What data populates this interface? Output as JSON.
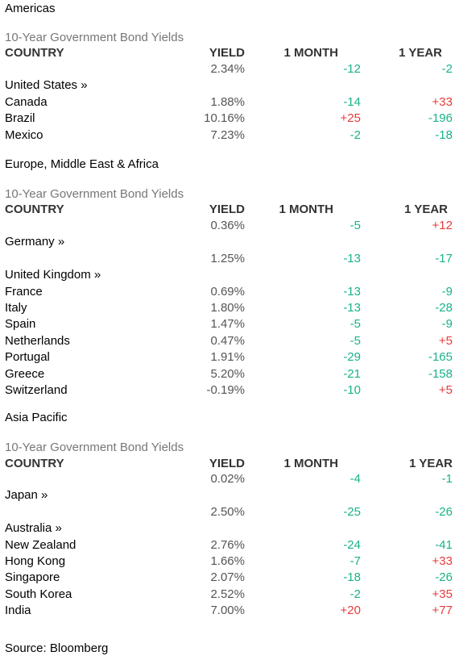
{
  "sections": [
    {
      "region": "Americas",
      "caption": "10-Year Government Bond Yields",
      "headers": {
        "country": "COUNTRY",
        "yield": "YIELD",
        "month": "1 MONTH",
        "year": "1 YEAR"
      },
      "rows": [
        {
          "country": "",
          "yield": "2.34%",
          "month": "-12",
          "year": "-2"
        },
        {
          "country": "United States »",
          "yield": "",
          "month": "",
          "year": ""
        },
        {
          "country": "Canada",
          "yield": "1.88%",
          "month": "-14",
          "year": "+33"
        },
        {
          "country": "Brazil",
          "yield": "10.16%",
          "month": "+25",
          "year": "-196"
        },
        {
          "country": "Mexico",
          "yield": "7.23%",
          "month": "-2",
          "year": "-18"
        }
      ]
    },
    {
      "region": "Europe, Middle East & Africa",
      "caption": "10-Year Government Bond Yields",
      "headers": {
        "country": "COUNTRY",
        "yield": "YIELD",
        "month": "1 MONTH",
        "year": "1 YEAR"
      },
      "rows": [
        {
          "country": "",
          "yield": "0.36%",
          "month": "-5",
          "year": "+12"
        },
        {
          "country": "Germany »",
          "yield": "",
          "month": "",
          "year": ""
        },
        {
          "country": "",
          "yield": "1.25%",
          "month": "-13",
          "year": "-17"
        },
        {
          "country": "United Kingdom »",
          "yield": "",
          "month": "",
          "year": ""
        },
        {
          "country": "France",
          "yield": "0.69%",
          "month": "-13",
          "year": "-9"
        },
        {
          "country": "Italy",
          "yield": "1.80%",
          "month": "-13",
          "year": "-28"
        },
        {
          "country": "Spain",
          "yield": "1.47%",
          "month": "-5",
          "year": "-9"
        },
        {
          "country": "Netherlands",
          "yield": "0.47%",
          "month": "-5",
          "year": "+5"
        },
        {
          "country": "Portugal",
          "yield": "1.91%",
          "month": "-29",
          "year": "-165"
        },
        {
          "country": "Greece",
          "yield": "5.20%",
          "month": "-21",
          "year": "-158"
        },
        {
          "country": "Switzerland",
          "yield": "-0.19%",
          "month": "-10",
          "year": "+5"
        }
      ]
    },
    {
      "region": "Asia Pacific",
      "caption": "10-Year Government Bond Yields",
      "headers": {
        "country": "COUNTRY",
        "yield": "YIELD",
        "month": "1 MONTH",
        "year": "1 YEAR"
      },
      "rows": [
        {
          "country": "",
          "yield": "0.02%",
          "month": "-4",
          "year": "-1"
        },
        {
          "country": "Japan »",
          "yield": "",
          "month": "",
          "year": ""
        },
        {
          "country": "",
          "yield": "2.50%",
          "month": "-25",
          "year": "-26"
        },
        {
          "country": "Australia »",
          "yield": "",
          "month": "",
          "year": ""
        },
        {
          "country": "New Zealand",
          "yield": "2.76%",
          "month": "-24",
          "year": "-41"
        },
        {
          "country": "Hong Kong",
          "yield": "1.66%",
          "month": "-7",
          "year": "+33"
        },
        {
          "country": "Singapore",
          "yield": "2.07%",
          "month": "-18",
          "year": "-26"
        },
        {
          "country": "South Korea",
          "yield": "2.52%",
          "month": "-2",
          "year": "+35"
        },
        {
          "country": "India",
          "yield": "7.00%",
          "month": "+20",
          "year": "+77"
        }
      ]
    }
  ],
  "source": "Source: Bloomberg",
  "colors": {
    "negative": "#19b28a",
    "positive": "#e83a3a",
    "caption": "#777777"
  }
}
